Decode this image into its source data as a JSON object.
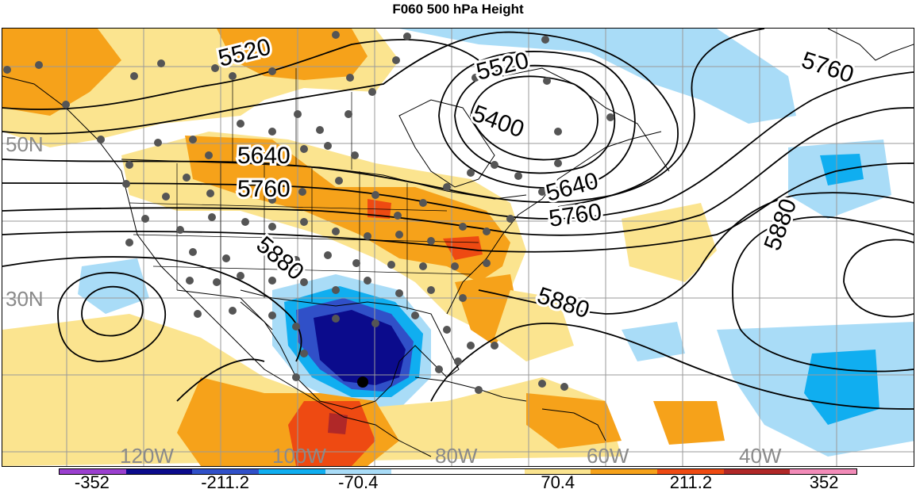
{
  "title": "F060 500 hPa Height",
  "map": {
    "lat_labels": [
      "50N",
      "30N"
    ],
    "lon_labels": [
      "120W",
      "100W",
      "80W",
      "60W",
      "40W"
    ],
    "contour_labels": [
      "5520",
      "5520",
      "5400",
      "5640",
      "5640",
      "5760",
      "5760",
      "5760",
      "5880",
      "5880",
      "5880"
    ],
    "contour_interval": 60,
    "anomaly_shading": true,
    "station_markers": true,
    "colors": {
      "contour": "#000000",
      "station": "#555555",
      "grid": "#9a9a9a",
      "coast": "#000000"
    }
  },
  "colorbar": {
    "colors": [
      "#9b3fcf",
      "#0b0b8c",
      "#3050c8",
      "#10aef0",
      "#a9dcf7",
      "#ffffff",
      "#ffffff",
      "#fbe48f",
      "#f6a21a",
      "#ee4a12",
      "#b02828",
      "#f28bb8"
    ],
    "labels": [
      "-352",
      "-211.2",
      "-70.4",
      "70.4",
      "211.2",
      "352"
    ]
  }
}
